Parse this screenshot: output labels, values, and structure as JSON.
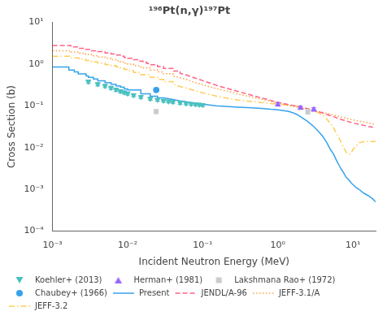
{
  "chart_data": {
    "type": "line",
    "title": "¹⁹⁶Pt(n,γ)¹⁹⁷Pt",
    "xlabel": "Incident Neutron Energy (MeV)",
    "ylabel": "Cross Section (b)",
    "log": true,
    "grid": false,
    "legend": "lower left",
    "xlim": [
      0.001,
      20
    ],
    "ylim": [
      0.0001,
      10
    ],
    "xticks": [
      {
        "value": 0.001,
        "label": "10⁻³"
      },
      {
        "value": 0.01,
        "label": "10⁻²"
      },
      {
        "value": 0.1,
        "label": "10⁻¹"
      },
      {
        "value": 1,
        "label": "10⁰"
      },
      {
        "value": 10,
        "label": "10¹"
      }
    ],
    "yticks": [
      {
        "value": 0.0001,
        "label": "10⁻⁴"
      },
      {
        "value": 0.001,
        "label": "10⁻³"
      },
      {
        "value": 0.01,
        "label": "10⁻²"
      },
      {
        "value": 0.1,
        "label": "10⁻¹"
      },
      {
        "value": 1,
        "label": "10⁰"
      },
      {
        "value": 10,
        "label": "10¹"
      }
    ],
    "series": [
      {
        "name": "Present",
        "type": "line",
        "line_style": "solid",
        "x": [
          0.001,
          0.00165,
          0.00165,
          0.00195,
          0.00195,
          0.0022,
          0.0022,
          0.0028,
          0.0028,
          0.003,
          0.003,
          0.0035,
          0.0035,
          0.004,
          0.004,
          0.005,
          0.005,
          0.006,
          0.006,
          0.007,
          0.007,
          0.008,
          0.008,
          0.009,
          0.009,
          0.01,
          0.01,
          0.015,
          0.015,
          0.02,
          0.02,
          0.025,
          0.025,
          0.03,
          0.035,
          0.04,
          0.05,
          0.06,
          0.07,
          0.08,
          0.09,
          0.1,
          0.15,
          0.2,
          0.3,
          0.4,
          0.5,
          0.6,
          0.7,
          0.8,
          0.9,
          1.0,
          1.2,
          1.4,
          1.6,
          1.8,
          2.0,
          2.5,
          3.0,
          3.5,
          4.0,
          4.5,
          5.0,
          5.5,
          6.0,
          6.5,
          7.0,
          7.5,
          8.0,
          8.5,
          9.0,
          9.5,
          10.0,
          11.0,
          12.0,
          14.0,
          16.0,
          18.0,
          20.0
        ],
        "values": [
          0.85,
          0.85,
          0.72,
          0.72,
          0.65,
          0.65,
          0.58,
          0.58,
          0.52,
          0.52,
          0.48,
          0.48,
          0.44,
          0.44,
          0.4,
          0.4,
          0.36,
          0.36,
          0.33,
          0.33,
          0.3,
          0.3,
          0.28,
          0.28,
          0.255,
          0.255,
          0.24,
          0.24,
          0.195,
          0.195,
          0.17,
          0.17,
          0.155,
          0.155,
          0.148,
          0.142,
          0.132,
          0.125,
          0.12,
          0.115,
          0.112,
          0.11,
          0.1,
          0.097,
          0.093,
          0.091,
          0.089,
          0.087,
          0.085,
          0.083,
          0.082,
          0.08,
          0.077,
          0.073,
          0.068,
          0.062,
          0.055,
          0.042,
          0.032,
          0.024,
          0.018,
          0.013,
          0.009,
          0.007,
          0.005,
          0.0038,
          0.003,
          0.0025,
          0.002,
          0.0018,
          0.0016,
          0.0014,
          0.0013,
          0.0011,
          0.001,
          0.0008,
          0.0007,
          0.0006,
          0.0005
        ]
      },
      {
        "name": "JENDL/A-96",
        "type": "line",
        "line_style": "dashed",
        "x": [
          0.001,
          0.00175,
          0.00175,
          0.00225,
          0.00225,
          0.00275,
          0.00275,
          0.0033,
          0.0033,
          0.004,
          0.004,
          0.005,
          0.005,
          0.006,
          0.006,
          0.007,
          0.007,
          0.008,
          0.008,
          0.009,
          0.009,
          0.01,
          0.01,
          0.012,
          0.012,
          0.014,
          0.014,
          0.016,
          0.016,
          0.018,
          0.018,
          0.02,
          0.02,
          0.025,
          0.025,
          0.03,
          0.03,
          0.04,
          0.04,
          0.05,
          0.05,
          0.06,
          0.07,
          0.08,
          0.09,
          0.1,
          0.12,
          0.14,
          0.16,
          0.2,
          0.25,
          0.3,
          0.4,
          0.5,
          0.6,
          0.7,
          0.8,
          0.9,
          1.0,
          1.2,
          1.4,
          1.6,
          1.8,
          2.0,
          2.5,
          3.0,
          3.5,
          4.0,
          4.5,
          5.0,
          5.5,
          6.0,
          7.0,
          8.0,
          9.0,
          10.0,
          12.0,
          14.0,
          16.0,
          18.0,
          20.0
        ],
        "values": [
          2.8,
          2.8,
          2.6,
          2.6,
          2.4,
          2.4,
          2.25,
          2.25,
          2.1,
          2.1,
          2.0,
          2.0,
          1.85,
          1.85,
          1.75,
          1.75,
          1.65,
          1.65,
          1.55,
          1.55,
          1.45,
          1.45,
          1.38,
          1.38,
          1.28,
          1.28,
          1.18,
          1.18,
          1.1,
          1.1,
          1.03,
          1.03,
          0.97,
          0.97,
          0.87,
          0.87,
          0.79,
          0.79,
          0.68,
          0.68,
          0.6,
          0.55,
          0.5,
          0.46,
          0.43,
          0.4,
          0.36,
          0.33,
          0.3,
          0.27,
          0.24,
          0.22,
          0.19,
          0.17,
          0.155,
          0.145,
          0.135,
          0.128,
          0.122,
          0.113,
          0.107,
          0.102,
          0.097,
          0.093,
          0.085,
          0.078,
          0.072,
          0.067,
          0.062,
          0.058,
          0.055,
          0.052,
          0.047,
          0.044,
          0.041,
          0.039,
          0.036,
          0.034,
          0.032,
          0.031,
          0.03
        ]
      },
      {
        "name": "JEFF-3.1/A",
        "type": "line",
        "line_style": "dotted",
        "x": [
          0.001,
          0.00175,
          0.00175,
          0.00225,
          0.00225,
          0.00275,
          0.00275,
          0.0033,
          0.0033,
          0.004,
          0.004,
          0.005,
          0.005,
          0.006,
          0.006,
          0.007,
          0.007,
          0.008,
          0.008,
          0.009,
          0.009,
          0.01,
          0.01,
          0.012,
          0.012,
          0.015,
          0.015,
          0.02,
          0.02,
          0.025,
          0.025,
          0.03,
          0.03,
          0.04,
          0.04,
          0.05,
          0.06,
          0.07,
          0.08,
          0.09,
          0.1,
          0.12,
          0.15,
          0.2,
          0.25,
          0.3,
          0.4,
          0.5,
          0.6,
          0.7,
          0.8,
          0.9,
          1.0,
          1.2,
          1.4,
          1.6,
          1.8,
          2.0,
          2.5,
          3.0,
          3.5,
          4.0,
          4.5,
          5.0,
          5.5,
          6.0,
          7.0,
          8.0,
          9.0,
          10.0,
          12.0,
          14.0,
          16.0,
          18.0,
          20.0
        ],
        "values": [
          2.1,
          2.1,
          1.95,
          1.95,
          1.82,
          1.82,
          1.7,
          1.7,
          1.58,
          1.58,
          1.48,
          1.48,
          1.38,
          1.38,
          1.28,
          1.28,
          1.2,
          1.2,
          1.13,
          1.13,
          1.06,
          1.06,
          1.0,
          1.0,
          0.91,
          0.91,
          0.82,
          0.82,
          0.72,
          0.72,
          0.65,
          0.65,
          0.59,
          0.59,
          0.52,
          0.47,
          0.43,
          0.39,
          0.36,
          0.34,
          0.32,
          0.29,
          0.26,
          0.23,
          0.21,
          0.19,
          0.17,
          0.155,
          0.145,
          0.135,
          0.128,
          0.122,
          0.117,
          0.108,
          0.102,
          0.097,
          0.093,
          0.089,
          0.082,
          0.077,
          0.073,
          0.069,
          0.066,
          0.063,
          0.06,
          0.058,
          0.054,
          0.051,
          0.048,
          0.046,
          0.043,
          0.041,
          0.039,
          0.037,
          0.036
        ]
      },
      {
        "name": "JEFF-3.2",
        "type": "line",
        "line_style": "dashdot",
        "x": [
          0.001,
          0.00175,
          0.00175,
          0.00225,
          0.00225,
          0.00275,
          0.00275,
          0.0033,
          0.0033,
          0.004,
          0.004,
          0.005,
          0.005,
          0.006,
          0.006,
          0.007,
          0.007,
          0.008,
          0.008,
          0.009,
          0.009,
          0.01,
          0.01,
          0.012,
          0.012,
          0.015,
          0.015,
          0.02,
          0.02,
          0.025,
          0.025,
          0.03,
          0.03,
          0.04,
          0.04,
          0.05,
          0.06,
          0.07,
          0.08,
          0.09,
          0.1,
          0.12,
          0.15,
          0.2,
          0.25,
          0.3,
          0.4,
          0.5,
          0.6,
          0.7,
          0.8,
          0.9,
          1.0,
          1.2,
          1.4,
          1.6,
          1.8,
          2.0,
          2.5,
          3.0,
          3.5,
          4.0,
          4.5,
          5.0,
          5.5,
          6.0,
          6.5,
          7.0,
          7.5,
          8.0,
          8.5,
          9.0,
          9.5,
          10.0,
          10.5,
          11.0,
          12.0,
          14.0,
          16.0,
          18.0,
          20.0
        ],
        "values": [
          1.55,
          1.55,
          1.42,
          1.42,
          1.32,
          1.32,
          1.22,
          1.22,
          1.13,
          1.13,
          1.06,
          1.06,
          0.98,
          0.98,
          0.92,
          0.92,
          0.86,
          0.86,
          0.8,
          0.8,
          0.75,
          0.75,
          0.7,
          0.7,
          0.63,
          0.63,
          0.555,
          0.555,
          0.48,
          0.48,
          0.43,
          0.43,
          0.38,
          0.38,
          0.33,
          0.29,
          0.265,
          0.245,
          0.228,
          0.215,
          0.205,
          0.19,
          0.172,
          0.155,
          0.145,
          0.138,
          0.13,
          0.125,
          0.12,
          0.117,
          0.114,
          0.112,
          0.11,
          0.107,
          0.104,
          0.101,
          0.098,
          0.094,
          0.086,
          0.077,
          0.068,
          0.058,
          0.048,
          0.038,
          0.03,
          0.022,
          0.017,
          0.013,
          0.01,
          0.008,
          0.007,
          0.007,
          0.0075,
          0.009,
          0.01,
          0.011,
          0.013,
          0.014,
          0.014,
          0.014,
          0.014
        ]
      },
      {
        "name": "Koehler+ (2013)",
        "type": "scatter",
        "marker": "triangle_down",
        "x": [
          0.003,
          0.004,
          0.005,
          0.006,
          0.007,
          0.008,
          0.009,
          0.01,
          0.012,
          0.015,
          0.02,
          0.025,
          0.03,
          0.035,
          0.04,
          0.05,
          0.06,
          0.07,
          0.08,
          0.09,
          0.1
        ],
        "values": [
          0.38,
          0.33,
          0.3,
          0.27,
          0.245,
          0.225,
          0.21,
          0.198,
          0.18,
          0.163,
          0.148,
          0.14,
          0.133,
          0.128,
          0.124,
          0.118,
          0.114,
          0.111,
          0.109,
          0.107,
          0.105
        ],
        "yerr": [
          0.035,
          0.03,
          0.027,
          0.024,
          0.022,
          0.02,
          0.018,
          0.017,
          0.015,
          0.013,
          0.012,
          0.011,
          0.01,
          0.01,
          0.009,
          0.009,
          0.008,
          0.008,
          0.008,
          0.008,
          0.008
        ]
      },
      {
        "name": "Herman+ (1981)",
        "type": "scatter",
        "marker": "triangle_up",
        "x": [
          1.0,
          2.0,
          3.0
        ],
        "values": [
          0.108,
          0.09,
          0.082
        ],
        "yerr": [
          0.01,
          0.008,
          0.008
        ]
      },
      {
        "name": "Lakshmana Rao+ (1972)",
        "type": "scatter",
        "marker": "square",
        "x": [
          0.024,
          2.5
        ],
        "values": [
          0.073,
          0.073
        ],
        "yerr": [
          0.008,
          0.01
        ]
      },
      {
        "name": "Chaubey+ (1966)",
        "type": "scatter",
        "marker": "circle",
        "x": [
          0.024
        ],
        "values": [
          0.24
        ],
        "yerr": [
          0.025
        ]
      }
    ]
  }
}
